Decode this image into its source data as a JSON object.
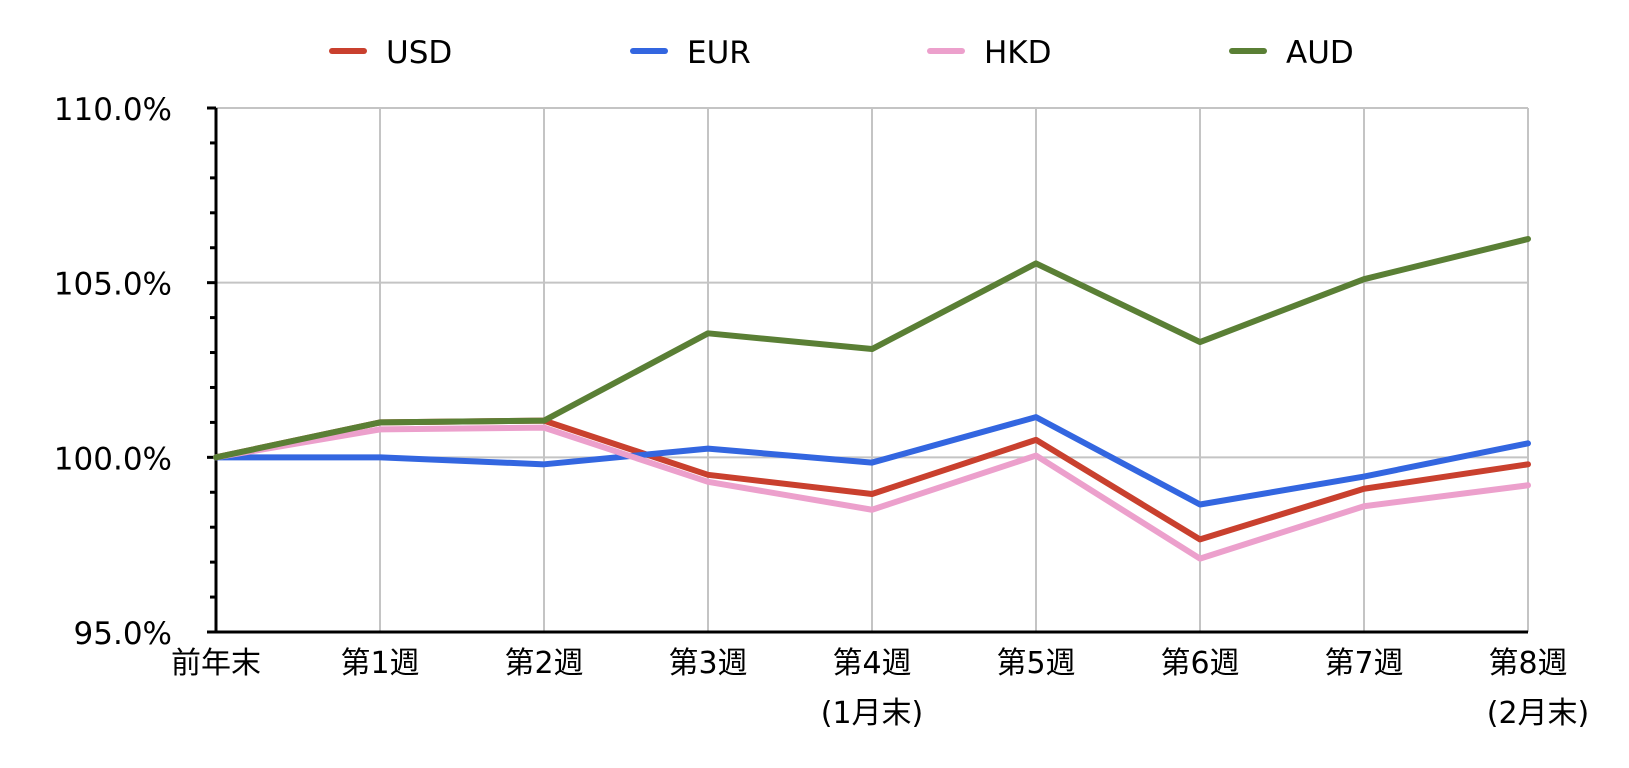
{
  "chart_data": {
    "type": "line",
    "title": "",
    "xlabel": "",
    "ylabel": "",
    "categories": [
      "前年末",
      "第1週",
      "第2週",
      "第3週",
      "第4週",
      "第5週",
      "第6週",
      "第7週",
      "第8週"
    ],
    "category_sublabels": [
      "",
      "",
      "",
      "",
      "(1月末)",
      "",
      "",
      "",
      "(2月末)"
    ],
    "ylim": [
      95.0,
      110.0
    ],
    "yticks": [
      95.0,
      100.0,
      105.0,
      110.0
    ],
    "ytick_labels": [
      "95.0%",
      "100.0%",
      "105.0%",
      "110.0%"
    ],
    "y_unit": "%",
    "grid": {
      "vertical": true,
      "horizontal": true
    },
    "legend_position": "top",
    "series": [
      {
        "name": "USD",
        "color": "#c9402e",
        "values": [
          100.0,
          101.0,
          101.05,
          99.5,
          98.95,
          100.5,
          97.65,
          99.1,
          99.8
        ]
      },
      {
        "name": "EUR",
        "color": "#3366e0",
        "values": [
          100.0,
          100.0,
          99.8,
          100.25,
          99.85,
          101.15,
          98.65,
          99.45,
          100.4
        ]
      },
      {
        "name": "HKD",
        "color": "#eca0cc",
        "values": [
          100.0,
          100.8,
          100.85,
          99.3,
          98.5,
          100.05,
          97.1,
          98.6,
          99.2
        ]
      },
      {
        "name": "AUD",
        "color": "#5a7f35",
        "values": [
          100.0,
          101.0,
          101.05,
          103.55,
          103.1,
          105.55,
          103.3,
          105.1,
          106.25
        ]
      }
    ]
  }
}
